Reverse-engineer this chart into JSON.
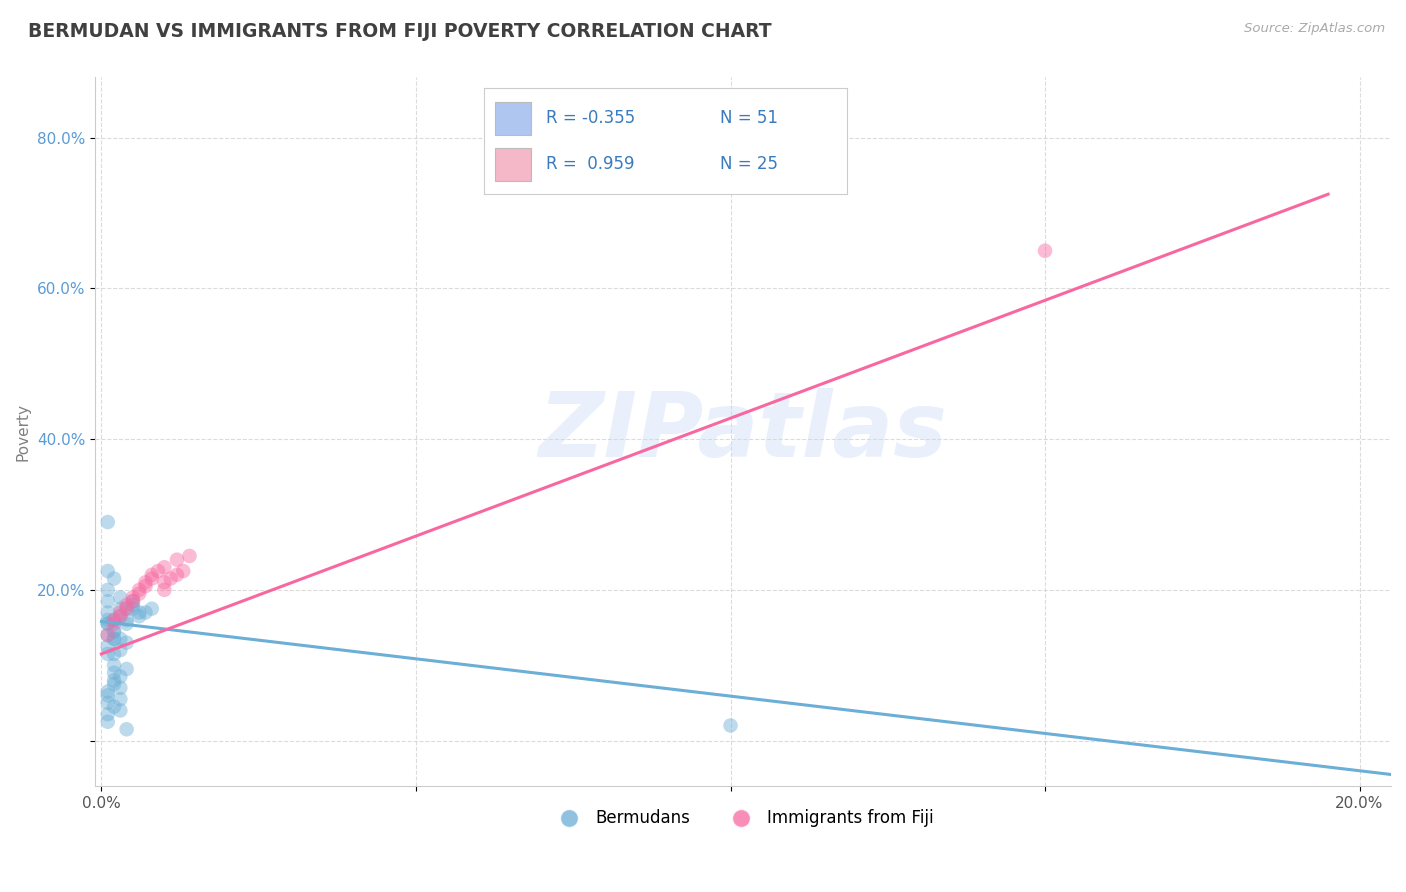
{
  "title": "BERMUDAN VS IMMIGRANTS FROM FIJI POVERTY CORRELATION CHART",
  "source": "Source: ZipAtlas.com",
  "ylabel": "Poverty",
  "xlim": [
    -0.001,
    0.205
  ],
  "ylim": [
    -0.06,
    0.88
  ],
  "x_ticks": [
    0.0,
    0.05,
    0.1,
    0.15,
    0.2
  ],
  "x_tick_labels": [
    "0.0%",
    "",
    "",
    "",
    "20.0%"
  ],
  "y_ticks": [
    0.0,
    0.2,
    0.4,
    0.6,
    0.8
  ],
  "y_tick_labels": [
    "",
    "20.0%",
    "40.0%",
    "60.0%",
    "80.0%"
  ],
  "blue_scatter": [
    [
      0.001,
      0.17
    ],
    [
      0.002,
      0.16
    ],
    [
      0.001,
      0.155
    ],
    [
      0.003,
      0.175
    ],
    [
      0.002,
      0.145
    ],
    [
      0.004,
      0.175
    ],
    [
      0.002,
      0.135
    ],
    [
      0.001,
      0.125
    ],
    [
      0.005,
      0.18
    ],
    [
      0.003,
      0.19
    ],
    [
      0.001,
      0.2
    ],
    [
      0.002,
      0.215
    ],
    [
      0.001,
      0.155
    ],
    [
      0.006,
      0.17
    ],
    [
      0.004,
      0.16
    ],
    [
      0.006,
      0.165
    ],
    [
      0.001,
      0.225
    ],
    [
      0.002,
      0.135
    ],
    [
      0.001,
      0.115
    ],
    [
      0.003,
      0.165
    ],
    [
      0.005,
      0.175
    ],
    [
      0.001,
      0.185
    ],
    [
      0.004,
      0.155
    ],
    [
      0.002,
      0.145
    ],
    [
      0.001,
      0.16
    ],
    [
      0.007,
      0.17
    ],
    [
      0.005,
      0.185
    ],
    [
      0.003,
      0.135
    ],
    [
      0.001,
      0.29
    ],
    [
      0.008,
      0.175
    ],
    [
      0.001,
      0.14
    ],
    [
      0.003,
      0.12
    ],
    [
      0.002,
      0.1
    ],
    [
      0.004,
      0.095
    ],
    [
      0.003,
      0.085
    ],
    [
      0.002,
      0.075
    ],
    [
      0.001,
      0.065
    ],
    [
      0.004,
      0.13
    ],
    [
      0.002,
      0.08
    ],
    [
      0.001,
      0.06
    ],
    [
      0.003,
      0.07
    ],
    [
      0.002,
      0.09
    ],
    [
      0.001,
      0.05
    ],
    [
      0.003,
      0.055
    ],
    [
      0.002,
      0.045
    ],
    [
      0.001,
      0.035
    ],
    [
      0.002,
      0.115
    ],
    [
      0.001,
      0.025
    ],
    [
      0.003,
      0.04
    ],
    [
      0.1,
      0.02
    ],
    [
      0.004,
      0.015
    ]
  ],
  "pink_scatter": [
    [
      0.001,
      0.14
    ],
    [
      0.002,
      0.155
    ],
    [
      0.002,
      0.16
    ],
    [
      0.003,
      0.165
    ],
    [
      0.003,
      0.17
    ],
    [
      0.004,
      0.175
    ],
    [
      0.004,
      0.18
    ],
    [
      0.005,
      0.185
    ],
    [
      0.005,
      0.19
    ],
    [
      0.006,
      0.195
    ],
    [
      0.006,
      0.2
    ],
    [
      0.007,
      0.205
    ],
    [
      0.007,
      0.21
    ],
    [
      0.008,
      0.215
    ],
    [
      0.008,
      0.22
    ],
    [
      0.009,
      0.225
    ],
    [
      0.01,
      0.2
    ],
    [
      0.01,
      0.21
    ],
    [
      0.01,
      0.23
    ],
    [
      0.011,
      0.215
    ],
    [
      0.012,
      0.22
    ],
    [
      0.012,
      0.24
    ],
    [
      0.013,
      0.225
    ],
    [
      0.014,
      0.245
    ],
    [
      0.15,
      0.65
    ]
  ],
  "blue_line_x": [
    0.0,
    0.205
  ],
  "blue_line_y": [
    0.158,
    -0.045
  ],
  "pink_line_x": [
    0.0,
    0.195
  ],
  "pink_line_y": [
    0.115,
    0.725
  ],
  "scatter_size": 110,
  "scatter_alpha": 0.45,
  "blue_color": "#6baed6",
  "pink_color": "#f768a1",
  "blue_fill": "#aec6f0",
  "pink_fill": "#f4b8c8",
  "grid_color": "#cccccc",
  "grid_style": "--",
  "grid_alpha": 0.7,
  "bg_color": "#ffffff",
  "title_color": "#404040",
  "title_fontsize": 13.5,
  "axis_label_color": "#808080",
  "tick_label_color_y": "#5b9bd5",
  "tick_label_color_x": "#555555",
  "watermark": "ZIPatlas",
  "watermark_color": "#c8daf5",
  "watermark_alpha": 0.4,
  "watermark_fontsize": 65,
  "legend_r_blue": "R = -0.355",
  "legend_n_blue": "N = 51",
  "legend_r_pink": "R =  0.959",
  "legend_n_pink": "N = 25",
  "bottom_legend_labels": [
    "Bermudans",
    "Immigrants from Fiji"
  ]
}
